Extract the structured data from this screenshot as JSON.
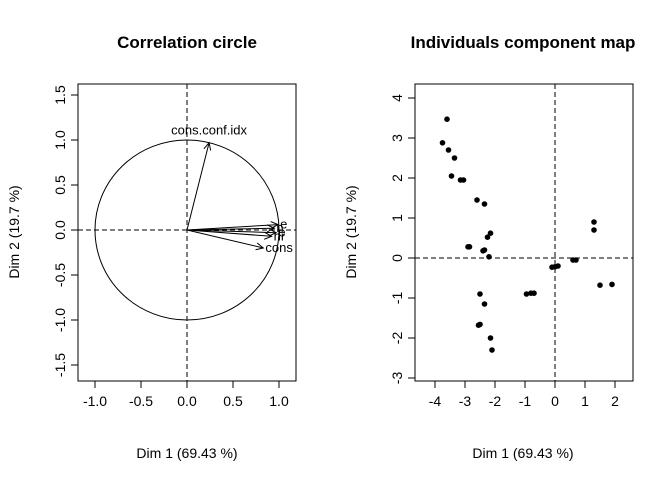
{
  "chart_data": [
    {
      "type": "scatter",
      "subtype": "pca-correlation-circle",
      "title": "Correlation circle",
      "xlabel": "Dim 1 (69.43 %)",
      "ylabel": "Dim 2 (19.7 %)",
      "xlim": [
        -1.0,
        1.0
      ],
      "ylim": [
        -1.5,
        1.5
      ],
      "x_ticks": [
        "-1.0",
        "-0.5",
        "0.0",
        "0.5",
        "1.0"
      ],
      "y_ticks": [
        "-1.5",
        "-1.0",
        "-0.5",
        "0.0",
        "0.5",
        "1.0",
        "1.5"
      ],
      "unit_circle": true,
      "grid": false,
      "vectors": [
        {
          "label": "cons.conf.idx",
          "x": 0.24,
          "y": 0.97
        },
        {
          "label": "e",
          "x": 0.99,
          "y": 0.06
        },
        {
          "label": "n",
          "x": 0.95,
          "y": 0.02
        },
        {
          "label": "nr",
          "x": 0.92,
          "y": -0.07
        },
        {
          "label": "e",
          "x": 0.97,
          "y": -0.03
        },
        {
          "label": "cons",
          "x": 0.83,
          "y": -0.2
        }
      ]
    },
    {
      "type": "scatter",
      "title": "Individuals component map",
      "xlabel": "Dim 1 (69.43 %)",
      "ylabel": "Dim 2 (19.7 %)",
      "xlim": [
        -4.8,
        2.8
      ],
      "ylim": [
        -3.1,
        4.4
      ],
      "x_ticks": [
        "-4",
        "-3",
        "-2",
        "-1",
        "0",
        "1",
        "2"
      ],
      "y_ticks": [
        "-3",
        "-2",
        "-1",
        "0",
        "1",
        "2",
        "3",
        "4"
      ],
      "grid": false,
      "points": [
        {
          "x": -3.6,
          "y": 3.47
        },
        {
          "x": -3.75,
          "y": 2.88
        },
        {
          "x": -3.55,
          "y": 2.7
        },
        {
          "x": -3.35,
          "y": 2.5
        },
        {
          "x": -3.05,
          "y": 1.95
        },
        {
          "x": -3.15,
          "y": 1.95
        },
        {
          "x": -3.45,
          "y": 2.05
        },
        {
          "x": -2.6,
          "y": 1.45
        },
        {
          "x": -2.35,
          "y": 1.35
        },
        {
          "x": -2.15,
          "y": 0.62
        },
        {
          "x": -2.25,
          "y": 0.52
        },
        {
          "x": -2.9,
          "y": 0.28
        },
        {
          "x": -2.85,
          "y": 0.28
        },
        {
          "x": -2.4,
          "y": 0.18
        },
        {
          "x": -2.35,
          "y": 0.2
        },
        {
          "x": -2.2,
          "y": 0.03
        },
        {
          "x": -2.5,
          "y": -0.9
        },
        {
          "x": -2.35,
          "y": -1.15
        },
        {
          "x": -2.55,
          "y": -1.68
        },
        {
          "x": -2.5,
          "y": -1.66
        },
        {
          "x": -2.15,
          "y": -2.0
        },
        {
          "x": -2.1,
          "y": -2.3
        },
        {
          "x": -0.95,
          "y": -0.9
        },
        {
          "x": -0.8,
          "y": -0.88
        },
        {
          "x": -0.7,
          "y": -0.88
        },
        {
          "x": -0.1,
          "y": -0.23
        },
        {
          "x": 0.1,
          "y": -0.2
        },
        {
          "x": 0.0,
          "y": -0.22
        },
        {
          "x": 0.7,
          "y": -0.05
        },
        {
          "x": 0.6,
          "y": -0.05
        },
        {
          "x": 1.3,
          "y": 0.9
        },
        {
          "x": 1.3,
          "y": 0.7
        },
        {
          "x": 1.5,
          "y": -0.68
        },
        {
          "x": 1.9,
          "y": -0.66
        }
      ]
    }
  ]
}
